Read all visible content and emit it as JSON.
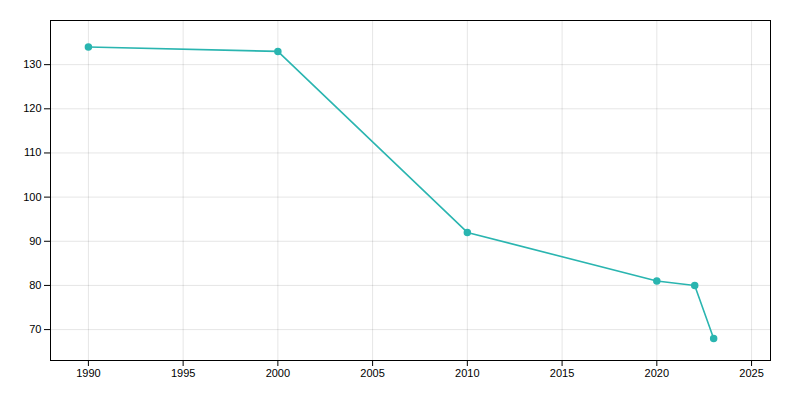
{
  "chart_data": {
    "type": "line",
    "x": [
      1990,
      2000,
      2010,
      2020,
      2022,
      2023
    ],
    "values": [
      134,
      133,
      92,
      81,
      80,
      68
    ],
    "color": "#2ab5b0",
    "marker": "circle",
    "xlim": [
      1988,
      2026
    ],
    "ylim": [
      63,
      140
    ],
    "xticks": [
      1990,
      1995,
      2000,
      2005,
      2010,
      2015,
      2020,
      2025
    ],
    "yticks": [
      70,
      80,
      90,
      100,
      110,
      120,
      130
    ],
    "grid": true
  }
}
